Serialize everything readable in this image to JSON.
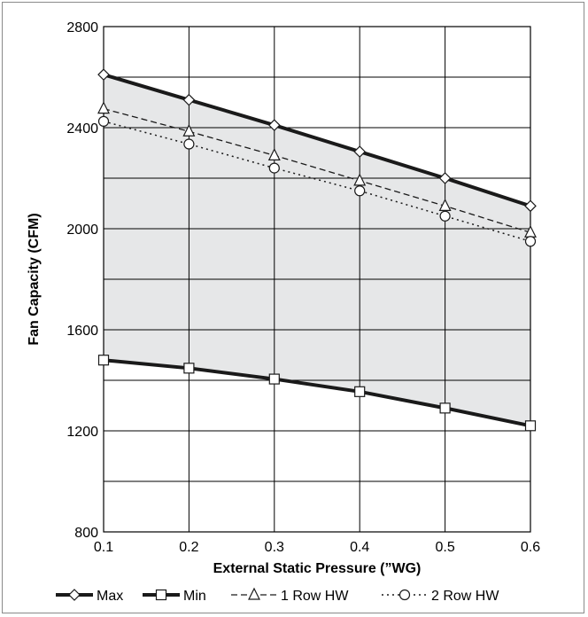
{
  "chart_data": {
    "type": "line",
    "title": "",
    "xlabel": "External Static Pressure (”WG)",
    "ylabel": "Fan Capacity (CFM)",
    "xlim": [
      0.1,
      0.6
    ],
    "ylim": [
      800,
      2800
    ],
    "x_ticks": [
      "0.1",
      "0.2",
      "0.3",
      "0.4",
      "0.5",
      "0.6"
    ],
    "y_ticks": [
      "800",
      "1200",
      "1600",
      "2000",
      "2400",
      "2800"
    ],
    "grid": true,
    "shaded_region_between": [
      "Max",
      "Min"
    ],
    "shade_color": "#e6e7e8",
    "legend_position": "bottom",
    "x": [
      0.1,
      0.2,
      0.3,
      0.4,
      0.5,
      0.6
    ],
    "series": [
      {
        "name": "Max",
        "marker": "diamond",
        "line": "solid-thick",
        "values": [
          2610,
          2510,
          2410,
          2305,
          2200,
          2090
        ]
      },
      {
        "name": "Min",
        "marker": "square",
        "line": "solid-thick",
        "values": [
          1480,
          1448,
          1405,
          1355,
          1290,
          1220
        ]
      },
      {
        "name": "1 Row HW",
        "marker": "triangle",
        "line": "dashed",
        "values": [
          2475,
          2385,
          2290,
          2190,
          2090,
          1985
        ]
      },
      {
        "name": "2 Row HW",
        "marker": "circle",
        "line": "dotted",
        "values": [
          2425,
          2335,
          2240,
          2150,
          2050,
          1950
        ]
      }
    ]
  }
}
